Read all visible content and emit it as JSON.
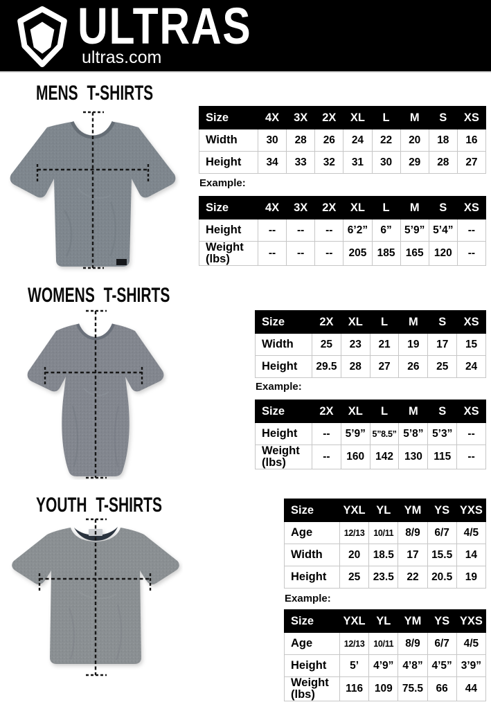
{
  "header": {
    "brand": "ULTRAS",
    "site": "ultras.com",
    "logo_icon": "ultras-shield-icon",
    "bg_color": "#000000"
  },
  "colors": {
    "table_header_bg": "#000000",
    "table_header_text": "#ffffff",
    "table_border": "#c6c6c6",
    "shirt_mens": "#7e868d",
    "shirt_womens": "#82868e",
    "shirt_youth": "#8a8f92"
  },
  "sections": {
    "mens": {
      "title": "MENS T-SHIRTS",
      "example_label": "Example:",
      "size_table": {
        "label_header": "Size",
        "columns": [
          "4X",
          "3X",
          "2X",
          "XL",
          "L",
          "M",
          "S",
          "XS"
        ],
        "rows": [
          {
            "label": "Width",
            "values": [
              "30",
              "28",
              "26",
              "24",
              "22",
              "20",
              "18",
              "16"
            ]
          },
          {
            "label": "Height",
            "values": [
              "34",
              "33",
              "32",
              "31",
              "30",
              "29",
              "28",
              "27"
            ]
          }
        ]
      },
      "example_table": {
        "label_header": "Size",
        "columns": [
          "4X",
          "3X",
          "2X",
          "XL",
          "L",
          "M",
          "S",
          "XS"
        ],
        "rows": [
          {
            "label": "Height",
            "values": [
              "--",
              "--",
              "--",
              "6’2”",
              "6”",
              "5’9”",
              "5’4”",
              "--"
            ]
          },
          {
            "label": "Weight (lbs)",
            "values": [
              "--",
              "--",
              "--",
              "205",
              "185",
              "165",
              "120",
              "--"
            ]
          }
        ]
      }
    },
    "womens": {
      "title": "WOMENS T-SHIRTS",
      "example_label": "Example:",
      "size_table": {
        "label_header": "Size",
        "columns": [
          "2X",
          "XL",
          "L",
          "M",
          "S",
          "XS"
        ],
        "rows": [
          {
            "label": "Width",
            "values": [
              "25",
              "23",
              "21",
              "19",
              "17",
              "15"
            ]
          },
          {
            "label": "Height",
            "values": [
              "29.5",
              "28",
              "27",
              "26",
              "25",
              "24"
            ]
          }
        ]
      },
      "example_table": {
        "label_header": "Size",
        "columns": [
          "2X",
          "XL",
          "L",
          "M",
          "S",
          "XS"
        ],
        "rows": [
          {
            "label": "Height",
            "values": [
              "--",
              "5’9”",
              "5”8.5”",
              "5’8”",
              "5’3”",
              "--"
            ]
          },
          {
            "label": "Weight (lbs)",
            "values": [
              "--",
              "160",
              "142",
              "130",
              "115",
              "--"
            ]
          }
        ]
      }
    },
    "youth": {
      "title": "YOUTH T-SHIRTS",
      "example_label": "Example:",
      "size_table": {
        "label_header": "Size",
        "columns": [
          "YXL",
          "YL",
          "YM",
          "YS",
          "YXS"
        ],
        "rows": [
          {
            "label": "Age",
            "values": [
              "12/13",
              "10/11",
              "8/9",
              "6/7",
              "4/5"
            ]
          },
          {
            "label": "Width",
            "values": [
              "20",
              "18.5",
              "17",
              "15.5",
              "14"
            ]
          },
          {
            "label": "Height",
            "values": [
              "25",
              "23.5",
              "22",
              "20.5",
              "19"
            ]
          }
        ]
      },
      "example_table": {
        "label_header": "Size",
        "columns": [
          "YXL",
          "YL",
          "YM",
          "YS",
          "YXS"
        ],
        "rows": [
          {
            "label": "Age",
            "values": [
              "12/13",
              "10/11",
              "8/9",
              "6/7",
              "4/5"
            ]
          },
          {
            "label": "Height",
            "values": [
              "5’",
              "4’9”",
              "4’8”",
              "4’5”",
              "3’9”"
            ]
          },
          {
            "label": "Weight (lbs)",
            "values": [
              "116",
              "109",
              "75.5",
              "66",
              "44"
            ]
          }
        ]
      }
    }
  }
}
